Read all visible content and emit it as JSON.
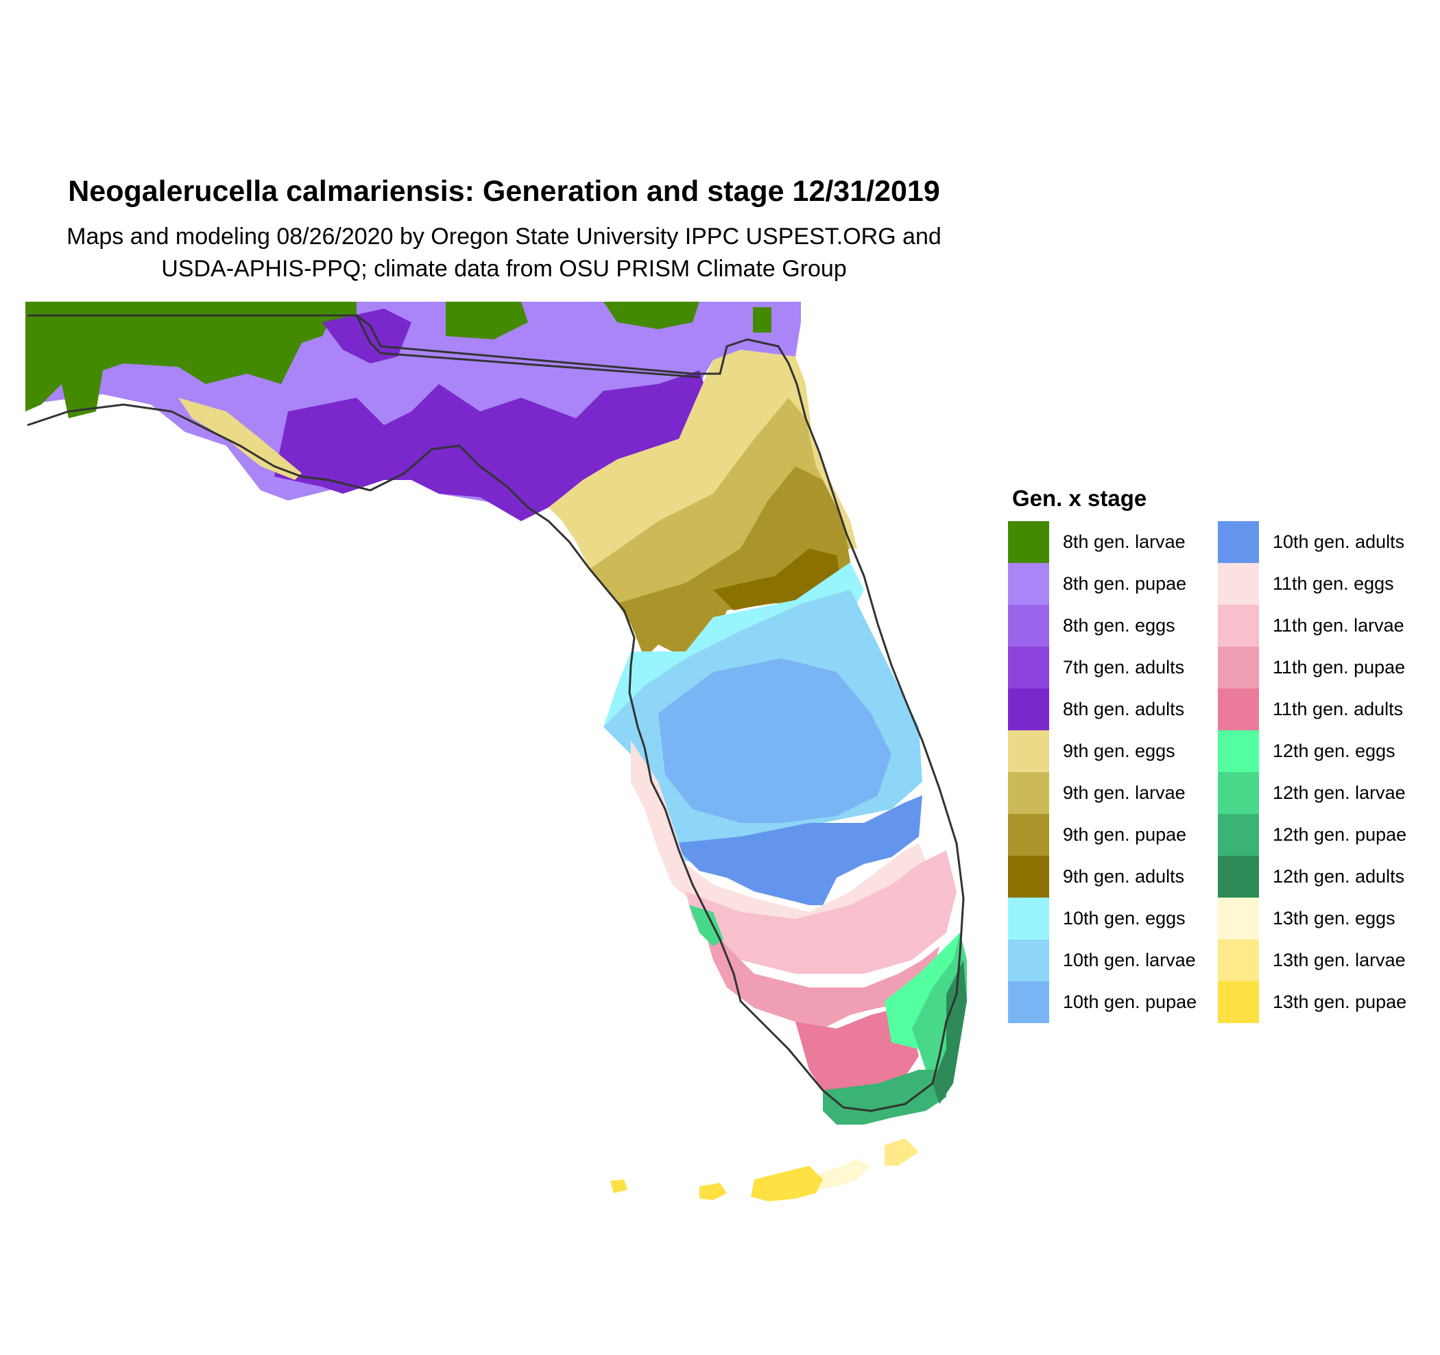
{
  "title": "Neogalerucella calmariensis: Generation and stage 12/31/2019",
  "subtitle_line1": "Maps and modeling 08/26/2020 by Oregon State University IPPC USPEST.ORG and",
  "subtitle_line2": "USDA-APHIS-PPQ; climate data from OSU PRISM Climate Group",
  "legend": {
    "title": "Gen. x stage",
    "col1": [
      {
        "label": "8th gen. larvae",
        "color": "#448A00"
      },
      {
        "label": "8th gen. pupae",
        "color": "#A985F8"
      },
      {
        "label": "8th gen. eggs",
        "color": "#9A64EB"
      },
      {
        "label": "7th gen. adults",
        "color": "#8B43DB"
      },
      {
        "label": "8th gen. adults",
        "color": "#7A28CC"
      },
      {
        "label": "9th gen. eggs",
        "color": "#EBDA87"
      },
      {
        "label": "9th gen. larvae",
        "color": "#CBBA57"
      },
      {
        "label": "9th gen. pupae",
        "color": "#AB9429"
      },
      {
        "label": "9th gen. adults",
        "color": "#8B7100"
      },
      {
        "label": "10th gen. eggs",
        "color": "#98F5FF"
      },
      {
        "label": "10th gen. larvae",
        "color": "#8DD6F7"
      },
      {
        "label": "10th gen. pupae",
        "color": "#79B4F4"
      }
    ],
    "col2": [
      {
        "label": "10th gen. adults",
        "color": "#6495ED"
      },
      {
        "label": "11th gen. eggs",
        "color": "#FCE1E1"
      },
      {
        "label": "11th gen. larvae",
        "color": "#F7C0CC"
      },
      {
        "label": "11th gen. pupae",
        "color": "#F09EB3"
      },
      {
        "label": "11th gen. adults",
        "color": "#EA7B9A"
      },
      {
        "label": "12th gen. eggs",
        "color": "#54FF9F"
      },
      {
        "label": "12th gen. larvae",
        "color": "#48D88A"
      },
      {
        "label": "12th gen. pupae",
        "color": "#3AB374"
      },
      {
        "label": "12th gen. adults",
        "color": "#2E8B57"
      },
      {
        "label": "13th gen. eggs",
        "color": "#FFF8D0"
      },
      {
        "label": "13th gen. larvae",
        "color": "#FFEA89"
      },
      {
        "label": "13th gen. pupae",
        "color": "#FFE144"
      }
    ]
  }
}
